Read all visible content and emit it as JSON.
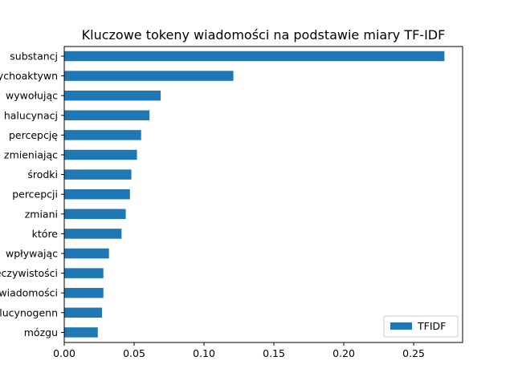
{
  "chart_data": {
    "type": "bar",
    "orientation": "horizontal",
    "title": "Kluczowe tokeny wiadomości na podstawie miary TF-IDF",
    "xlabel": "",
    "ylabel": "",
    "xlim": [
      0,
      0.285
    ],
    "xticks": [
      0.0,
      0.05,
      0.1,
      0.15,
      0.2,
      0.25
    ],
    "xtick_labels": [
      "0.00",
      "0.05",
      "0.10",
      "0.15",
      "0.20",
      "0.25"
    ],
    "categories": [
      "substancj",
      "psychoaktywn",
      "wywołując",
      "halucynacj",
      "percepcję",
      "zmieniając",
      "środki",
      "percepcji",
      "zmiani",
      "które",
      "wpływając",
      "rzeczywistości",
      "świadomości",
      "halucynogenn",
      "mózgu"
    ],
    "series": [
      {
        "name": "TFIDF",
        "color": "#1f77b4",
        "values": [
          0.272,
          0.121,
          0.069,
          0.061,
          0.055,
          0.052,
          0.048,
          0.047,
          0.044,
          0.041,
          0.032,
          0.028,
          0.028,
          0.027,
          0.024
        ]
      }
    ],
    "grid": false,
    "legend": {
      "position": "lower-right",
      "entries": [
        "TFIDF"
      ]
    }
  }
}
